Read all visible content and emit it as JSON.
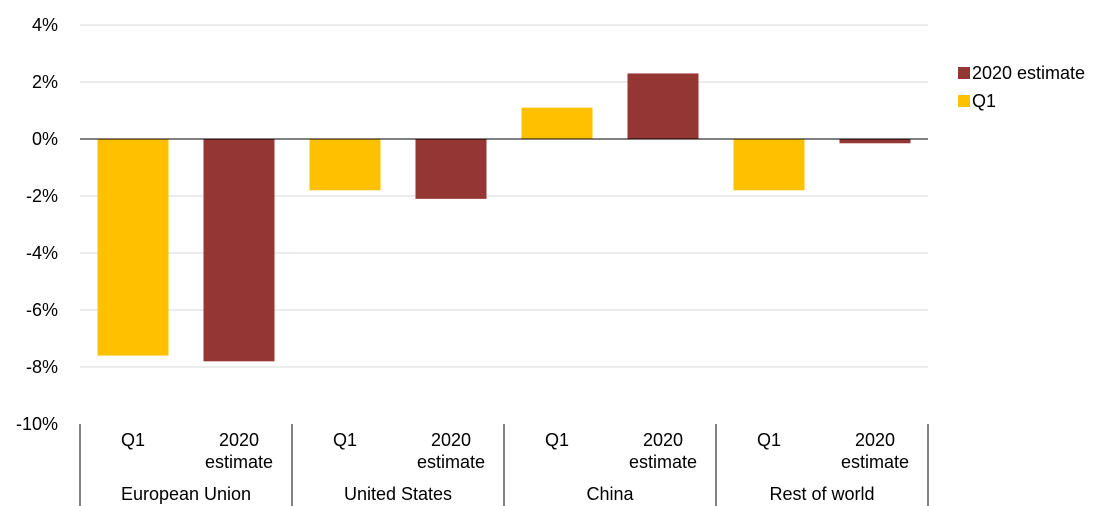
{
  "chart_data": {
    "type": "bar",
    "groups": [
      "European Union",
      "United States",
      "China",
      "Rest of world"
    ],
    "subcategories": [
      "Q1",
      "2020 estimate"
    ],
    "series": [
      {
        "name": "Q1",
        "color": "#FFC000",
        "values": [
          -7.6,
          -1.8,
          1.1,
          -1.8
        ]
      },
      {
        "name": "2020 estimate",
        "color": "#943634",
        "values": [
          -7.8,
          -2.1,
          2.3,
          -0.15
        ]
      }
    ],
    "y_ticks": [
      "4%",
      "2%",
      "0%",
      "-2%",
      "-4%",
      "-6%",
      "-8%",
      "-10%"
    ],
    "ylim": [
      -10,
      4
    ],
    "grid": true,
    "legend_placement": "right",
    "legend_order": [
      "2020 estimate",
      "Q1"
    ]
  }
}
